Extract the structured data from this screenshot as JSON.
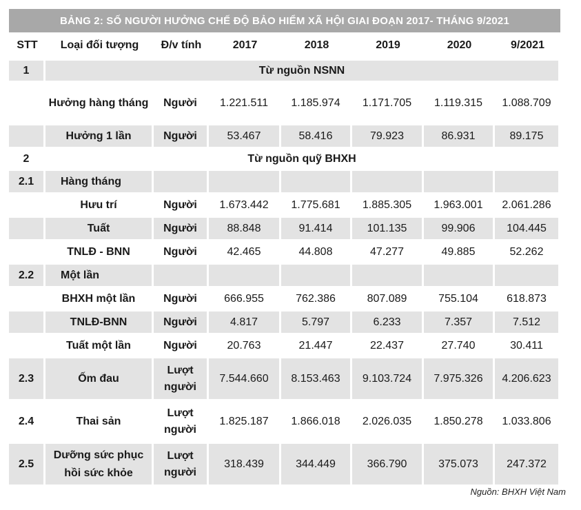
{
  "title": "BẢNG 2: SỐ NGƯỜI HƯỞNG CHẾ ĐỘ BẢO HIỂM XÃ HỘI GIAI ĐOẠN 2017- THÁNG 9/2021",
  "headers": [
    "STT",
    "Loại đối tượng",
    "Đ/v tính",
    "2017",
    "2018",
    "2019",
    "2020",
    "9/2021"
  ],
  "rows": [
    {
      "type": "section",
      "stt": "1",
      "label": "Từ nguồn NSNN"
    },
    {
      "type": "data",
      "stt": "",
      "label": "Hưởng hàng tháng",
      "unit": "Người",
      "values": [
        "1.221.511",
        "1.185.974",
        "1.171.705",
        "1.119.315",
        "1.088.709"
      ]
    },
    {
      "type": "data",
      "stt": "",
      "label": "Hưởng 1 lần",
      "unit": "Người",
      "values": [
        "53.467",
        "58.416",
        "79.923",
        "86.931",
        "89.175"
      ]
    },
    {
      "type": "section",
      "stt": "2",
      "label": "Từ nguồn quỹ BHXH"
    },
    {
      "type": "group",
      "stt": "2.1",
      "label": "Hàng tháng"
    },
    {
      "type": "data",
      "stt": "",
      "label": "Hưu trí",
      "unit": "Người",
      "values": [
        "1.673.442",
        "1.775.681",
        "1.885.305",
        "1.963.001",
        "2.061.286"
      ]
    },
    {
      "type": "data",
      "stt": "",
      "label": "Tuất",
      "unit": "Người",
      "values": [
        "88.848",
        "91.414",
        "101.135",
        "99.906",
        "104.445"
      ]
    },
    {
      "type": "data",
      "stt": "",
      "label": "TNLĐ - BNN",
      "unit": "Người",
      "values": [
        "42.465",
        "44.808",
        "47.277",
        "49.885",
        "52.262"
      ]
    },
    {
      "type": "group",
      "stt": "2.2",
      "label": "Một lần"
    },
    {
      "type": "data",
      "stt": "",
      "label": "BHXH một lần",
      "unit": "Người",
      "values": [
        "666.955",
        "762.386",
        "807.089",
        "755.104",
        "618.873"
      ]
    },
    {
      "type": "data",
      "stt": "",
      "label": "TNLĐ-BNN",
      "unit": "Người",
      "values": [
        "4.817",
        "5.797",
        "6.233",
        "7.357",
        "7.512"
      ]
    },
    {
      "type": "data",
      "stt": "",
      "label": "Tuất một lần",
      "unit": "Người",
      "values": [
        "20.763",
        "21.447",
        "22.437",
        "27.740",
        "30.411"
      ]
    },
    {
      "type": "data",
      "stt": "2.3",
      "label": "Ốm đau",
      "unit": "Lượt người",
      "values": [
        "7.544.660",
        "8.153.463",
        "9.103.724",
        "7.975.326",
        "4.206.623"
      ]
    },
    {
      "type": "data",
      "stt": "2.4",
      "label": "Thai sản",
      "unit": "Lượt người",
      "values": [
        "1.825.187",
        "1.866.018",
        "2.026.035",
        "1.850.278",
        "1.033.806"
      ]
    },
    {
      "type": "data",
      "stt": "2.5",
      "label": "Dưỡng sức phục hồi sức khỏe",
      "unit": "Lượt người",
      "values": [
        "318.439",
        "344.449",
        "366.790",
        "375.073",
        "247.372"
      ]
    }
  ],
  "source": "Nguồn: BHXH Việt Nam"
}
